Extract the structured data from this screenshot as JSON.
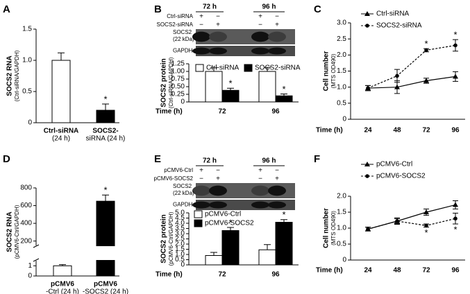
{
  "chart_data": [
    {
      "panel": "A",
      "type": "bar",
      "ylabel": [
        "SOCS2 RNA",
        "(Ctrl-siRNA/GAPDH)"
      ],
      "categories": [
        [
          "Ctrl-siRNA",
          "(24 h)"
        ],
        [
          "SOCS2-",
          "siRNA (24 h)"
        ]
      ],
      "values": [
        1.0,
        0.2
      ],
      "errors": [
        0.12,
        0.1
      ],
      "colors": [
        "#ffffff",
        "#000000"
      ],
      "sig": [
        null,
        "*"
      ],
      "ylim": [
        0,
        1.5
      ],
      "yticks": [
        0,
        0.5,
        {
          "value": 1,
          "label": "1.0"
        },
        1.5
      ]
    },
    {
      "panel": "B",
      "type": "bar",
      "blot": {
        "times": [
          "72 h",
          "96 h"
        ],
        "rows": [
          {
            "label": "Ctrl-siRNA",
            "signs": [
              "+",
              "−",
              "+",
              "−"
            ]
          },
          {
            "label": "SOCS2-siRNA",
            "signs": [
              "−",
              "+",
              "−",
              "+"
            ]
          }
        ],
        "bands": [
          [
            "SOCS2",
            "(22 kDa)"
          ],
          [
            "GAPDH"
          ]
        ]
      },
      "ylabel": [
        "SOCS2 protein",
        "(Ctrl-siRNA/GAPDH)"
      ],
      "xlabel": "Time (h)",
      "categories": [
        "72",
        "96"
      ],
      "series": [
        {
          "name": "Ctrl-siRNA",
          "color": "#ffffff",
          "values": [
            1.0,
            1.0
          ],
          "errors": [
            0.12,
            0.13
          ]
        },
        {
          "name": "SOCS2-siRNA",
          "color": "#000000",
          "values": [
            0.38,
            0.2
          ],
          "errors": [
            0.07,
            0.06
          ],
          "sig": [
            "*",
            "*"
          ]
        }
      ],
      "ylim": [
        0,
        1.25
      ],
      "yticks": [
        0,
        0.25,
        {
          "value": 0.5,
          "label": "0.50"
        },
        0.75,
        {
          "value": 1,
          "label": "1.00"
        },
        1.25
      ]
    },
    {
      "panel": "C",
      "type": "line",
      "ylabel": [
        "Cell number",
        "(MTS OD490)"
      ],
      "xlabel": "Time (h)",
      "categories": [
        "24",
        "48",
        "72",
        "96"
      ],
      "series": [
        {
          "name": "Ctrl-siRNA",
          "color": "#000000",
          "marker": "triangle",
          "dashed": false,
          "values": [
            0.97,
            1.0,
            1.2,
            1.33
          ],
          "errors": [
            0.08,
            0.2,
            0.08,
            0.15
          ]
        },
        {
          "name": "SOCS2-siRNA",
          "color": "#000000",
          "marker": "circle",
          "dashed": true,
          "values": [
            0.97,
            1.35,
            2.15,
            2.3
          ],
          "errors": [
            0.08,
            0.2,
            0.05,
            0.18
          ],
          "sig": [
            null,
            null,
            "*",
            "*"
          ]
        }
      ],
      "ylim": [
        0,
        3
      ],
      "yticks": [
        0,
        0.5,
        {
          "value": 1,
          "label": "1.0"
        },
        1.5,
        {
          "value": 2,
          "label": "2.0"
        },
        2.5,
        {
          "value": 3,
          "label": "3.0"
        }
      ]
    },
    {
      "panel": "D",
      "type": "bar",
      "ylabel": [
        "SOCS2 RNA",
        "(pCMV6-Ctrl/GAPDH)"
      ],
      "categories": [
        [
          "pCMV6",
          "-Ctrl (24 h)"
        ],
        [
          "pCMV6",
          "-SOCS2 (24 h)"
        ]
      ],
      "values": [
        1.0,
        650
      ],
      "errors": [
        0.12,
        70
      ],
      "colors": [
        "#ffffff",
        "#000000"
      ],
      "sig": [
        null,
        "*"
      ],
      "ylim": [
        0,
        800
      ],
      "ybreak": [
        1.5,
        150
      ],
      "yticks": [
        0,
        1,
        200,
        400,
        600,
        800
      ]
    },
    {
      "panel": "E",
      "type": "bar",
      "blot": {
        "times": [
          "72 h",
          "96 h"
        ],
        "rows": [
          {
            "label": "pCMV6-Ctrl",
            "signs": [
              "+",
              "−",
              "+",
              "−"
            ]
          },
          {
            "label": "pCMV6-SOCS2",
            "signs": [
              "−",
              "+",
              "−",
              "+"
            ]
          }
        ],
        "bands": [
          [
            "SOCS2",
            "(22 kDa)"
          ],
          [
            "GAPDH"
          ]
        ]
      },
      "ylabel": [
        "SOCS2 protein",
        "(pCMV6-Ctrl/GAPDH)"
      ],
      "xlabel": "Time (h)",
      "categories": [
        "72",
        "96"
      ],
      "series": [
        {
          "name": "pCMV6-Ctrl",
          "color": "#ffffff",
          "values": [
            0.9,
            1.45
          ],
          "errors": [
            0.3,
            0.5
          ]
        },
        {
          "name": "pCMV6-SOCS2",
          "color": "#000000",
          "values": [
            3.3,
            4.1
          ],
          "errors": [
            0.3,
            0.25
          ],
          "sig": [
            "*",
            "*"
          ]
        }
      ],
      "ylim": [
        0,
        5
      ],
      "yticks": [
        0,
        0.5,
        {
          "value": 1,
          "label": "1.0"
        },
        1.5,
        {
          "value": 2,
          "label": "2.0"
        },
        2.5,
        {
          "value": 3,
          "label": "3.0"
        },
        3.5,
        {
          "value": 4,
          "label": "4.0"
        },
        4.5,
        {
          "value": 5,
          "label": "5.0"
        }
      ]
    },
    {
      "panel": "F",
      "type": "line",
      "ylabel": [
        "Cell number",
        "(MTS OD490)"
      ],
      "xlabel": "Time (h)",
      "categories": [
        "24",
        "48",
        "72",
        "96"
      ],
      "sig_below": true,
      "series": [
        {
          "name": "pCMV6-Ctrl",
          "color": "#000000",
          "marker": "triangle",
          "dashed": false,
          "values": [
            0.97,
            1.22,
            1.5,
            1.73
          ],
          "errors": [
            0.06,
            0.08,
            0.1,
            0.13
          ]
        },
        {
          "name": "pCMV6-SOCS2",
          "color": "#000000",
          "marker": "circle",
          "dashed": true,
          "values": [
            0.97,
            1.22,
            1.08,
            1.3
          ],
          "errors": [
            0.06,
            0.1,
            0.05,
            0.17
          ],
          "sig": [
            null,
            null,
            "*",
            "*"
          ]
        }
      ],
      "ylim": [
        0,
        2
      ],
      "yticks": [
        0,
        0.5,
        {
          "value": 1,
          "label": "1.0"
        },
        1.5,
        {
          "value": 2,
          "label": "2.0"
        }
      ]
    }
  ]
}
